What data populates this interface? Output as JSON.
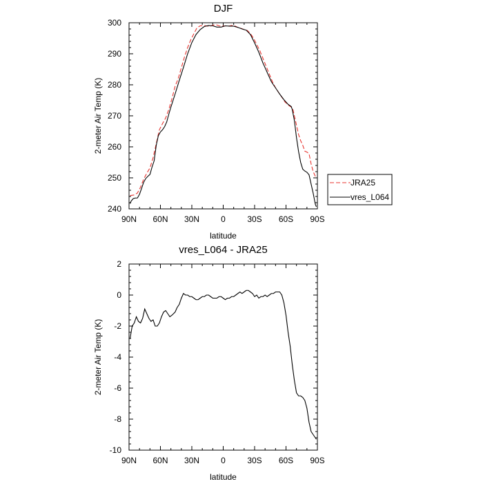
{
  "chart_data": [
    {
      "type": "line",
      "title": "DJF",
      "xlabel": "latitude",
      "ylabel": "2-meter Air Temp (K)",
      "xlim": [
        90,
        -90
      ],
      "ylim": [
        240,
        300
      ],
      "x_ticks": [
        90,
        60,
        30,
        0,
        -30,
        -60,
        -90
      ],
      "x_tick_labels": [
        "90N",
        "60N",
        "30N",
        "0",
        "30S",
        "60S",
        "90S"
      ],
      "y_ticks": [
        240,
        250,
        260,
        270,
        280,
        290,
        300
      ],
      "y_tick_labels": [
        "240",
        "250",
        "260",
        "270",
        "280",
        "290",
        "300"
      ],
      "grid": false,
      "legend_position": "right",
      "series": [
        {
          "name": "JRA25",
          "color": "#e8332e",
          "dash": "dashed",
          "x": [
            89,
            85,
            82,
            79,
            76,
            73,
            70,
            67,
            64,
            61,
            58,
            55,
            52,
            49,
            46,
            43,
            40,
            37,
            34,
            31,
            28,
            25,
            22,
            19,
            16,
            13,
            10,
            7,
            4,
            1,
            -2,
            -5,
            -8,
            -11,
            -14,
            -17,
            -20,
            -23,
            -26,
            -29,
            -32,
            -35,
            -38,
            -41,
            -44,
            -47,
            -50,
            -53,
            -56,
            -59,
            -62,
            -65,
            -66.5,
            -68,
            -70,
            -72,
            -74,
            -76,
            -78,
            -80,
            -82,
            -84,
            -86,
            -88,
            -89
          ],
          "values": [
            244.3,
            244.5,
            245.1,
            247.0,
            249.6,
            251.5,
            253.2,
            256.5,
            261.0,
            265.5,
            267.5,
            269.3,
            272.0,
            275.5,
            279.5,
            282.0,
            285.5,
            289.0,
            292.0,
            294.5,
            296.5,
            298.4,
            299.0,
            299.1,
            299.0,
            298.8,
            299.2,
            299.4,
            299.0,
            298.9,
            299.0,
            298.9,
            299.1,
            299.0,
            298.5,
            298.2,
            297.8,
            297.5,
            296.5,
            295.0,
            293.0,
            291.0,
            288.5,
            286.0,
            283.5,
            281.0,
            279.0,
            277.5,
            276.0,
            274.5,
            273.5,
            272.8,
            272.2,
            270.0,
            267.0,
            264.0,
            262.0,
            260.5,
            258.6,
            258.3,
            257.8,
            254.5,
            252.0,
            250.5,
            250.2
          ]
        },
        {
          "name": "vres_L064",
          "color": "#000000",
          "dash": "solid",
          "x": [
            89,
            88,
            86,
            84,
            82,
            80,
            78,
            76,
            74,
            72,
            70,
            68,
            66,
            64,
            62,
            60,
            58,
            56,
            54,
            52,
            50,
            46,
            42,
            38,
            34,
            30,
            26,
            22,
            18,
            14,
            10,
            6,
            2,
            -2,
            -6,
            -10,
            -14,
            -18,
            -22,
            -26,
            -30,
            -34,
            -38,
            -42,
            -46,
            -50,
            -54,
            -58,
            -62,
            -65,
            -66,
            -68,
            -70,
            -72,
            -74,
            -76,
            -78,
            -80,
            -82,
            -84,
            -86,
            -88,
            -89
          ],
          "values": [
            241.7,
            242.5,
            243.3,
            243.5,
            243.5,
            244.7,
            246.6,
            248.6,
            249.8,
            250.5,
            251.1,
            253.5,
            255.5,
            260.5,
            263.6,
            264.8,
            265.5,
            266.5,
            268.0,
            270.5,
            272.8,
            277.0,
            281.4,
            285.6,
            290.0,
            293.6,
            296.2,
            297.8,
            298.8,
            299.1,
            299.0,
            298.6,
            298.6,
            299.0,
            298.9,
            298.9,
            298.5,
            298.0,
            297.6,
            296.2,
            293.5,
            290.5,
            287.0,
            284.0,
            281.0,
            279.0,
            277.0,
            275.2,
            273.7,
            273.0,
            272.0,
            268.5,
            263.0,
            258.5,
            255.0,
            252.8,
            252.2,
            251.8,
            251.0,
            248.0,
            245.0,
            241.5,
            240.7
          ]
        }
      ]
    },
    {
      "type": "line",
      "title": "vres_L064 - JRA25",
      "xlabel": "latitude",
      "ylabel": "2-meter Air Temp (K)",
      "xlim": [
        90,
        -90
      ],
      "ylim": [
        -10,
        2
      ],
      "x_ticks": [
        90,
        60,
        30,
        0,
        -30,
        -60,
        -90
      ],
      "x_tick_labels": [
        "90N",
        "60N",
        "30N",
        "0",
        "30S",
        "60S",
        "90S"
      ],
      "y_ticks": [
        -10,
        -8,
        -6,
        -4,
        -2,
        0,
        2
      ],
      "y_tick_labels": [
        "-10",
        "-8",
        "-6",
        "-4",
        "-2",
        "0",
        "2"
      ],
      "grid": false,
      "series": [
        {
          "color": "#000000",
          "dash": "solid",
          "x": [
            89,
            87,
            85,
            83,
            81,
            79,
            77,
            75,
            73,
            71,
            69,
            67,
            65,
            63,
            61,
            59,
            57,
            55,
            53,
            51,
            49,
            46,
            44,
            42,
            40,
            38,
            36,
            34,
            32,
            30,
            28,
            26,
            24,
            22,
            20,
            18,
            16,
            14,
            12,
            10,
            8,
            6,
            4,
            2,
            0,
            -2,
            -4,
            -6,
            -8,
            -10,
            -12,
            -14,
            -16,
            -18,
            -20,
            -22,
            -24,
            -26,
            -28,
            -30,
            -32,
            -34,
            -36,
            -38,
            -40,
            -42,
            -44,
            -46,
            -48,
            -50,
            -52,
            -54,
            -56,
            -58,
            -60,
            -62,
            -64,
            -66,
            -68,
            -70,
            -72,
            -74,
            -76,
            -78,
            -80,
            -82,
            -84,
            -86,
            -88,
            -89
          ],
          "values": [
            -2.8,
            -2.0,
            -1.8,
            -1.4,
            -1.7,
            -1.8,
            -1.5,
            -0.9,
            -1.2,
            -1.5,
            -1.7,
            -1.6,
            -2.0,
            -2.0,
            -1.8,
            -1.4,
            -1.1,
            -1.0,
            -1.2,
            -1.4,
            -1.3,
            -1.1,
            -0.8,
            -0.6,
            -0.2,
            0.1,
            0.0,
            0.0,
            -0.1,
            -0.1,
            -0.2,
            -0.3,
            -0.3,
            -0.2,
            -0.1,
            -0.1,
            0.0,
            0.0,
            -0.1,
            -0.2,
            -0.2,
            -0.2,
            -0.1,
            -0.1,
            -0.2,
            -0.3,
            -0.2,
            -0.2,
            -0.1,
            -0.1,
            0.0,
            0.1,
            0.2,
            0.1,
            0.2,
            0.3,
            0.3,
            0.2,
            0.1,
            -0.1,
            0.0,
            -0.2,
            -0.1,
            -0.1,
            0.0,
            -0.1,
            0.0,
            0.1,
            0.1,
            0.2,
            0.2,
            0.2,
            0.0,
            -0.5,
            -1.3,
            -2.4,
            -3.3,
            -4.5,
            -5.5,
            -6.3,
            -6.5,
            -6.5,
            -6.6,
            -6.8,
            -7.3,
            -8.2,
            -8.8,
            -9.0,
            -9.2,
            -9.3
          ]
        }
      ]
    }
  ]
}
